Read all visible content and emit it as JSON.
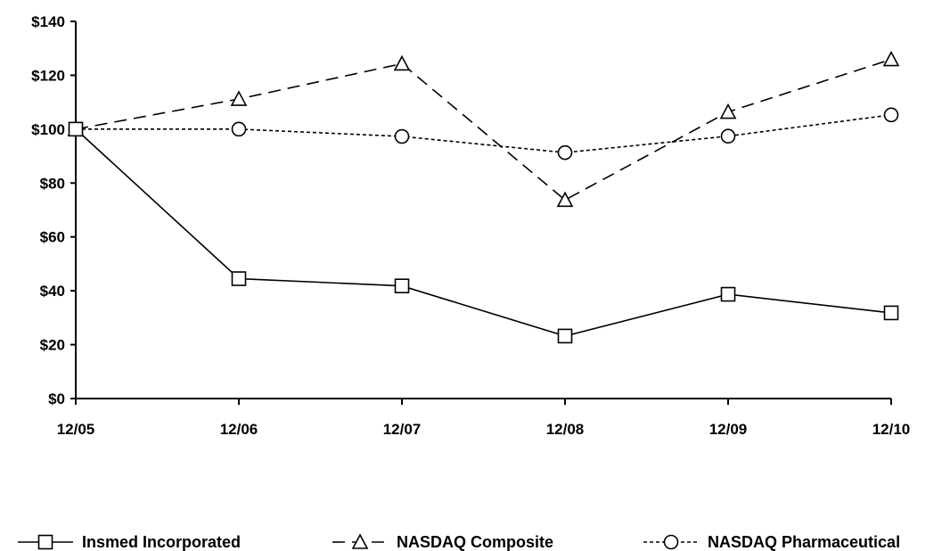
{
  "chart_data": {
    "type": "line",
    "categories": [
      "12/05",
      "12/06",
      "12/07",
      "12/08",
      "12/09",
      "12/10"
    ],
    "y_ticks": [
      "$0",
      "$20",
      "$40",
      "$60",
      "$80",
      "$100",
      "$120",
      "$140"
    ],
    "ylim": [
      0,
      140
    ],
    "grid": false,
    "legend_position": "bottom",
    "series": [
      {
        "name": "Insmed Incorporated",
        "values": [
          100,
          44.5,
          41.8,
          23.2,
          38.7,
          31.8
        ],
        "marker": "square",
        "dash": "solid",
        "color": "#000000"
      },
      {
        "name": "NASDAQ Composite",
        "values": [
          100,
          111.2,
          124.3,
          73.7,
          106.4,
          125.9
        ],
        "marker": "triangle",
        "dash": "dashed",
        "color": "#000000"
      },
      {
        "name": "NASDAQ Pharmaceutical",
        "values": [
          100,
          100,
          97.3,
          91.3,
          97.4,
          105.3
        ],
        "marker": "circle",
        "dash": "dotted",
        "color": "#000000"
      }
    ]
  }
}
